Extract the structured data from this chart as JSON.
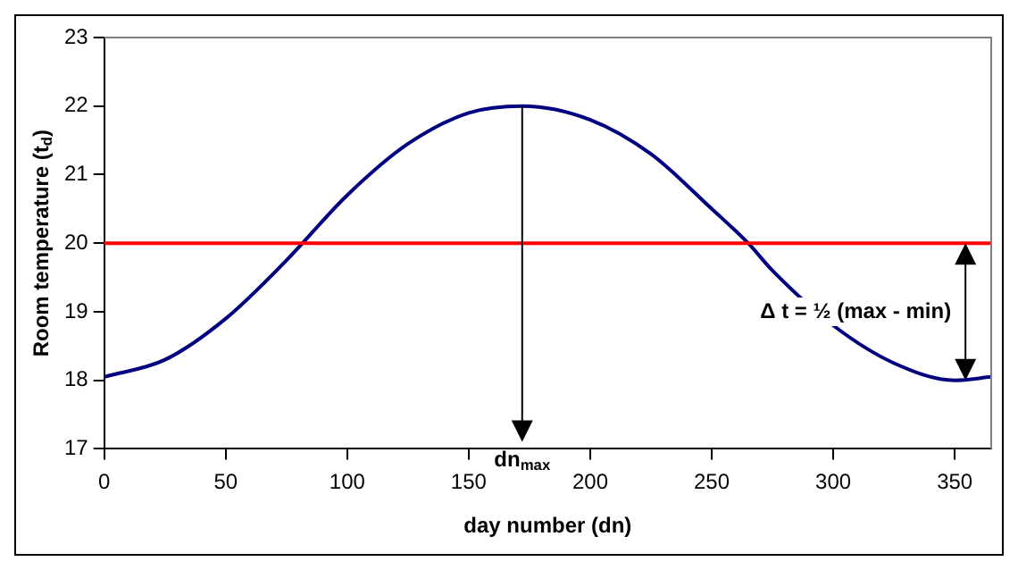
{
  "chart_data": {
    "type": "line",
    "xlabel": "day number (dn)",
    "ylabel": "Room temperature (t$_{d}$)",
    "x": [
      0,
      25,
      50,
      75,
      100,
      125,
      150,
      172,
      200,
      225,
      250,
      265,
      275,
      300,
      325,
      350,
      365
    ],
    "series": [
      {
        "color": "#000080",
        "values": [
          18.05,
          18.3,
          18.9,
          19.75,
          20.7,
          21.45,
          21.9,
          22.0,
          21.8,
          21.3,
          20.5,
          20.0,
          19.6,
          18.8,
          18.25,
          18.0,
          18.05
        ]
      }
    ],
    "xlim": [
      0,
      365
    ],
    "xticks": [
      0,
      50,
      100,
      150,
      200,
      250,
      300,
      350
    ],
    "ylim": [
      17,
      23
    ],
    "yticks": [
      17,
      18,
      19,
      20,
      21,
      22,
      23
    ],
    "ref_lines": [
      {
        "axis": "y",
        "value": 20,
        "color": "#ff0000"
      }
    ],
    "annotations": [
      "dn$_{max}$",
      "Δ t = ½ (max - min)"
    ],
    "grid": false,
    "legend": false,
    "marker": "none",
    "line_style": "solid"
  }
}
